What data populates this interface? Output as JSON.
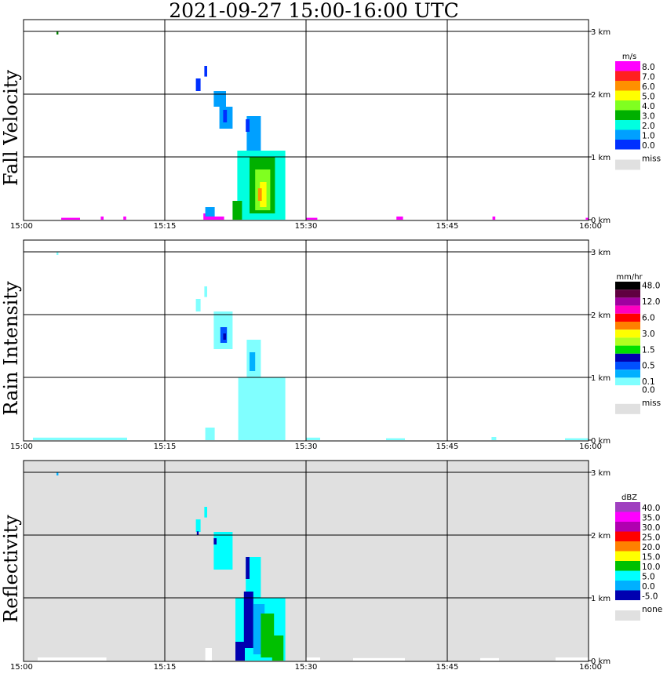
{
  "chart_data": {
    "type": "heatmap",
    "title": "2021-09-27   15:00-16:00 UTC",
    "x_ticks": [
      "15:00",
      "15:15",
      "15:30",
      "15:45",
      "16:00"
    ],
    "x_range_minutes": [
      0,
      60
    ],
    "y_ticks": [
      "0 km",
      "1 km",
      "2 km",
      "3 km"
    ],
    "y_range_km": [
      0,
      3
    ],
    "grid": true,
    "panels": [
      {
        "name": "fall-velocity",
        "ylabel": "Fall Velocity",
        "unit": "m/s",
        "background": "#ffffff",
        "legend": [
          {
            "label": "8.0",
            "color": "#ff00ff"
          },
          {
            "label": "7.0",
            "color": "#ff2020"
          },
          {
            "label": "6.0",
            "color": "#ff9000"
          },
          {
            "label": "5.0",
            "color": "#ffff00"
          },
          {
            "label": "4.0",
            "color": "#80ff20"
          },
          {
            "label": "3.0",
            "color": "#00b000"
          },
          {
            "label": "2.0",
            "color": "#00ffe0"
          },
          {
            "label": "1.0",
            "color": "#00a0ff"
          },
          {
            "label": "0.0",
            "color": "#0030ff"
          }
        ],
        "missing_label": "miss",
        "missing_color": "#e0e0e0"
      },
      {
        "name": "rain-intensity",
        "ylabel": "Rain Intensity",
        "unit": "mm/hr",
        "background": "#ffffff",
        "legend": [
          {
            "label": "48.0",
            "color": "#000000"
          },
          {
            "label": "",
            "color": "#600040"
          },
          {
            "label": "12.0",
            "color": "#a000a0"
          },
          {
            "label": "",
            "color": "#ff00c0"
          },
          {
            "label": "6.0",
            "color": "#ff0000"
          },
          {
            "label": "",
            "color": "#ff8000"
          },
          {
            "label": "3.0",
            "color": "#ffff00"
          },
          {
            "label": "",
            "color": "#b0ff20"
          },
          {
            "label": "1.5",
            "color": "#00e000"
          },
          {
            "label": "",
            "color": "#0000b0"
          },
          {
            "label": "0.5",
            "color": "#0050ff"
          },
          {
            "label": "",
            "color": "#00b0ff"
          },
          {
            "label": "0.1",
            "color": "#80ffff"
          },
          {
            "label": "0.0",
            "color": "#ffffff"
          }
        ],
        "missing_label": "miss",
        "missing_color": "#e0e0e0"
      },
      {
        "name": "reflectivity",
        "ylabel": "Reflectivity",
        "unit": "dBZ",
        "background": "#e0e0e0",
        "legend": [
          {
            "label": "40.0",
            "color": "#a040c0"
          },
          {
            "label": "35.0",
            "color": "#ff00ff"
          },
          {
            "label": "30.0",
            "color": "#b000b0"
          },
          {
            "label": "25.0",
            "color": "#ff0000"
          },
          {
            "label": "20.0",
            "color": "#ff8000"
          },
          {
            "label": "15.0",
            "color": "#ffff00"
          },
          {
            "label": "10.0",
            "color": "#00c000"
          },
          {
            "label": "5.0",
            "color": "#00ffff"
          },
          {
            "label": "0.0",
            "color": "#00b0ff"
          },
          {
            "label": "-5.0",
            "color": "#0000b0"
          }
        ],
        "missing_label": "none",
        "missing_color": "#e0e0e0"
      }
    ],
    "echoes": [
      {
        "panel": 0,
        "t": [
          3.5,
          3.7
        ],
        "h": [
          2.95,
          3.0
        ],
        "color": "#008000"
      },
      {
        "panel": 0,
        "t": [
          19.2,
          19.5
        ],
        "h": [
          2.28,
          2.45
        ],
        "color": "#0030ff"
      },
      {
        "panel": 0,
        "t": [
          18.3,
          18.8
        ],
        "h": [
          2.05,
          2.25
        ],
        "color": "#0030ff"
      },
      {
        "panel": 0,
        "t": [
          20.2,
          21.5
        ],
        "h": [
          1.8,
          2.05
        ],
        "color": "#00a0ff"
      },
      {
        "panel": 0,
        "t": [
          20.8,
          22.2
        ],
        "h": [
          1.45,
          1.8
        ],
        "color": "#00a0ff"
      },
      {
        "panel": 0,
        "t": [
          21.2,
          21.6
        ],
        "h": [
          1.55,
          1.75
        ],
        "color": "#0030ff"
      },
      {
        "panel": 0,
        "t": [
          23.7,
          25.2
        ],
        "h": [
          1.1,
          1.65
        ],
        "color": "#00a0ff"
      },
      {
        "panel": 0,
        "t": [
          23.6,
          24.0
        ],
        "h": [
          1.4,
          1.6
        ],
        "color": "#0030ff"
      },
      {
        "panel": 0,
        "t": [
          22.7,
          27.8
        ],
        "h": [
          0.0,
          1.1
        ],
        "color": "#00ffe0"
      },
      {
        "panel": 0,
        "t": [
          22.2,
          23.2
        ],
        "h": [
          0.0,
          0.3
        ],
        "color": "#00b000"
      },
      {
        "panel": 0,
        "t": [
          24.0,
          26.7
        ],
        "h": [
          0.1,
          1.0
        ],
        "color": "#00b000"
      },
      {
        "panel": 0,
        "t": [
          24.6,
          26.2
        ],
        "h": [
          0.15,
          0.8
        ],
        "color": "#80ff20"
      },
      {
        "panel": 0,
        "t": [
          25.1,
          25.8
        ],
        "h": [
          0.2,
          0.6
        ],
        "color": "#ffff00"
      },
      {
        "panel": 0,
        "t": [
          24.9,
          25.3
        ],
        "h": [
          0.3,
          0.5
        ],
        "color": "#ff9000"
      },
      {
        "panel": 0,
        "t": [
          19.1,
          20.0
        ],
        "h": [
          0.0,
          0.1
        ],
        "color": "#ff00ff"
      },
      {
        "panel": 0,
        "t": [
          20.0,
          21.3
        ],
        "h": [
          0.0,
          0.05
        ],
        "color": "#ff00ff"
      },
      {
        "panel": 0,
        "t": [
          19.3,
          20.3
        ],
        "h": [
          0.05,
          0.2
        ],
        "color": "#00a0ff"
      },
      {
        "panel": 0,
        "t": [
          4.0,
          6.0
        ],
        "h": [
          0.0,
          0.03
        ],
        "color": "#ff00ff"
      },
      {
        "panel": 0,
        "t": [
          8.2,
          8.5
        ],
        "h": [
          0.0,
          0.05
        ],
        "color": "#ff00ff"
      },
      {
        "panel": 0,
        "t": [
          10.6,
          10.9
        ],
        "h": [
          0.0,
          0.05
        ],
        "color": "#ff00ff"
      },
      {
        "panel": 0,
        "t": [
          30.0,
          31.2
        ],
        "h": [
          0.0,
          0.03
        ],
        "color": "#ff00ff"
      },
      {
        "panel": 0,
        "t": [
          39.6,
          40.3
        ],
        "h": [
          0.0,
          0.05
        ],
        "color": "#ff00ff"
      },
      {
        "panel": 0,
        "t": [
          49.8,
          50.1
        ],
        "h": [
          0.0,
          0.05
        ],
        "color": "#ff00ff"
      },
      {
        "panel": 0,
        "t": [
          59.7,
          60.0
        ],
        "h": [
          0.0,
          0.03
        ],
        "color": "#ff00ff"
      },
      {
        "panel": 1,
        "t": [
          3.5,
          3.7
        ],
        "h": [
          2.95,
          3.0
        ],
        "color": "#80ffff"
      },
      {
        "panel": 1,
        "t": [
          19.2,
          19.5
        ],
        "h": [
          2.28,
          2.45
        ],
        "color": "#80ffff"
      },
      {
        "panel": 1,
        "t": [
          18.3,
          18.8
        ],
        "h": [
          2.05,
          2.25
        ],
        "color": "#80ffff"
      },
      {
        "panel": 1,
        "t": [
          20.2,
          22.2
        ],
        "h": [
          1.45,
          2.05
        ],
        "color": "#80ffff"
      },
      {
        "panel": 1,
        "t": [
          20.9,
          21.6
        ],
        "h": [
          1.55,
          1.8
        ],
        "color": "#0050ff"
      },
      {
        "panel": 1,
        "t": [
          21.2,
          21.5
        ],
        "h": [
          1.6,
          1.7
        ],
        "color": "#0000b0"
      },
      {
        "panel": 1,
        "t": [
          23.7,
          25.2
        ],
        "h": [
          1.0,
          1.6
        ],
        "color": "#80ffff"
      },
      {
        "panel": 1,
        "t": [
          24.0,
          24.6
        ],
        "h": [
          1.1,
          1.4
        ],
        "color": "#00b0ff"
      },
      {
        "panel": 1,
        "t": [
          24.6,
          26.0
        ],
        "h": [
          0.7,
          1.0
        ],
        "color": "#00b0ff"
      },
      {
        "panel": 1,
        "t": [
          22.8,
          27.8
        ],
        "h": [
          0.0,
          1.0
        ],
        "color": "#80ffff"
      },
      {
        "panel": 1,
        "t": [
          19.3,
          20.3
        ],
        "h": [
          0.0,
          0.2
        ],
        "color": "#80ffff"
      },
      {
        "panel": 1,
        "t": [
          1.0,
          11.0
        ],
        "h": [
          0.0,
          0.04
        ],
        "color": "#80ffff"
      },
      {
        "panel": 1,
        "t": [
          30.0,
          31.5
        ],
        "h": [
          0.0,
          0.04
        ],
        "color": "#80ffff"
      },
      {
        "panel": 1,
        "t": [
          38.5,
          40.5
        ],
        "h": [
          0.0,
          0.03
        ],
        "color": "#80ffff"
      },
      {
        "panel": 1,
        "t": [
          49.7,
          50.2
        ],
        "h": [
          0.0,
          0.05
        ],
        "color": "#80ffff"
      },
      {
        "panel": 1,
        "t": [
          57.5,
          60.0
        ],
        "h": [
          0.0,
          0.03
        ],
        "color": "#80ffff"
      },
      {
        "panel": 2,
        "t": [
          3.5,
          3.7
        ],
        "h": [
          2.95,
          3.0
        ],
        "color": "#00b0ff"
      },
      {
        "panel": 2,
        "t": [
          19.2,
          19.5
        ],
        "h": [
          2.28,
          2.45
        ],
        "color": "#00ffff"
      },
      {
        "panel": 2,
        "t": [
          18.3,
          18.8
        ],
        "h": [
          2.05,
          2.25
        ],
        "color": "#00ffff"
      },
      {
        "panel": 2,
        "t": [
          18.4,
          18.6
        ],
        "h": [
          2.0,
          2.06
        ],
        "color": "#0000b0"
      },
      {
        "panel": 2,
        "t": [
          20.2,
          22.2
        ],
        "h": [
          1.45,
          2.05
        ],
        "color": "#00ffff"
      },
      {
        "panel": 2,
        "t": [
          20.2,
          20.5
        ],
        "h": [
          1.85,
          1.95
        ],
        "color": "#0000b0"
      },
      {
        "panel": 2,
        "t": [
          23.6,
          25.2
        ],
        "h": [
          1.0,
          1.65
        ],
        "color": "#00ffff"
      },
      {
        "panel": 2,
        "t": [
          23.6,
          24.0
        ],
        "h": [
          1.3,
          1.65
        ],
        "color": "#0000b0"
      },
      {
        "panel": 2,
        "t": [
          22.5,
          27.8
        ],
        "h": [
          0.0,
          1.0
        ],
        "color": "#00ffff"
      },
      {
        "panel": 2,
        "t": [
          22.5,
          23.5
        ],
        "h": [
          0.0,
          0.3
        ],
        "color": "#0000b0"
      },
      {
        "panel": 2,
        "t": [
          23.4,
          24.4
        ],
        "h": [
          0.2,
          1.1
        ],
        "color": "#0000b0"
      },
      {
        "panel": 2,
        "t": [
          24.4,
          25.6
        ],
        "h": [
          0.1,
          0.9
        ],
        "color": "#00b0ff"
      },
      {
        "panel": 2,
        "t": [
          25.2,
          26.6
        ],
        "h": [
          0.05,
          0.75
        ],
        "color": "#00c000"
      },
      {
        "panel": 2,
        "t": [
          26.4,
          27.6
        ],
        "h": [
          0.0,
          0.4
        ],
        "color": "#00c000"
      },
      {
        "panel": 2,
        "t": [
          19.3,
          20.0
        ],
        "h": [
          0.0,
          0.2
        ],
        "color": "#ffffff"
      },
      {
        "panel": 2,
        "t": [
          1.5,
          8.8
        ],
        "h": [
          0.0,
          0.05
        ],
        "color": "#ffffff"
      },
      {
        "panel": 2,
        "t": [
          30.0,
          31.5
        ],
        "h": [
          0.0,
          0.05
        ],
        "color": "#ffffff"
      },
      {
        "panel": 2,
        "t": [
          35.0,
          40.5
        ],
        "h": [
          0.0,
          0.04
        ],
        "color": "#ffffff"
      },
      {
        "panel": 2,
        "t": [
          48.5,
          50.5
        ],
        "h": [
          0.0,
          0.04
        ],
        "color": "#ffffff"
      },
      {
        "panel": 2,
        "t": [
          56.5,
          60.0
        ],
        "h": [
          0.0,
          0.05
        ],
        "color": "#ffffff"
      }
    ]
  }
}
